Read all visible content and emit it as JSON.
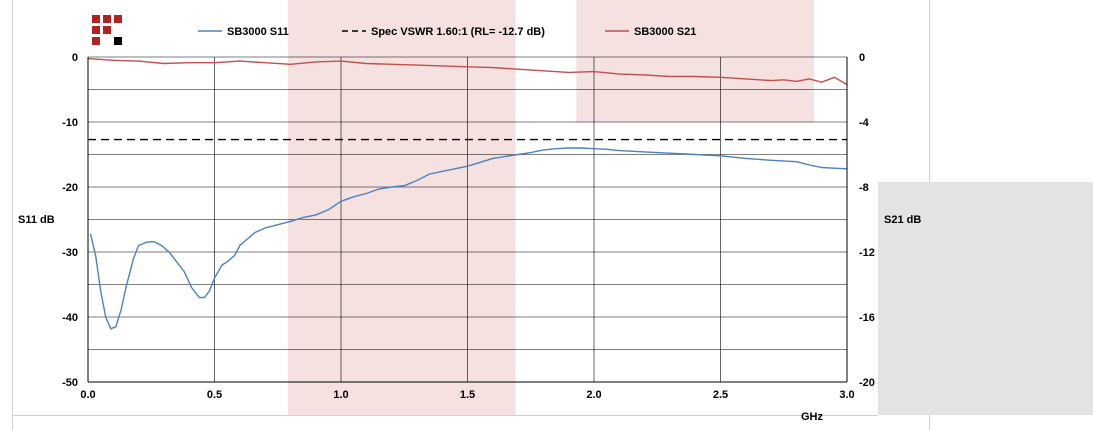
{
  "logo": {
    "name": "company-logo",
    "colors": {
      "primary": "#b22222",
      "accent": "#000000"
    }
  },
  "chart_data": {
    "type": "line",
    "xlabel": "GHz",
    "ylabel_left": "S11 dB",
    "ylabel_right": "S21 dB",
    "xlim": [
      0.0,
      3.0
    ],
    "ylim_left": [
      -50,
      0
    ],
    "ylim_right": [
      -20,
      0
    ],
    "x_ticks": [
      "0.0",
      "0.5",
      "1.0",
      "1.5",
      "2.0",
      "2.5",
      "3.0"
    ],
    "y_left_ticks": [
      "0",
      "-10",
      "-20",
      "-30",
      "-40",
      "-50"
    ],
    "y_right_ticks": [
      "0",
      "-4",
      "-8",
      "-12",
      "-16",
      "-20"
    ],
    "grid": true,
    "legend_position": "top",
    "shaded_bands": [
      {
        "x_range": [
          0.79,
          1.69
        ],
        "y_range_left": [
          -50,
          0
        ]
      },
      {
        "x_range": [
          1.93,
          2.87
        ],
        "y_range_left": [
          -10,
          0
        ]
      }
    ],
    "series": [
      {
        "name": "SB3000 S11",
        "axis": "left",
        "color": "#4f81bd",
        "style": "solid",
        "x": [
          0.01,
          0.03,
          0.05,
          0.07,
          0.09,
          0.11,
          0.13,
          0.15,
          0.18,
          0.2,
          0.23,
          0.26,
          0.29,
          0.32,
          0.35,
          0.38,
          0.41,
          0.44,
          0.46,
          0.48,
          0.5,
          0.53,
          0.55,
          0.58,
          0.6,
          0.63,
          0.66,
          0.7,
          0.75,
          0.8,
          0.85,
          0.9,
          0.95,
          1.0,
          1.05,
          1.1,
          1.15,
          1.2,
          1.25,
          1.3,
          1.35,
          1.4,
          1.45,
          1.5,
          1.55,
          1.6,
          1.65,
          1.7,
          1.75,
          1.8,
          1.85,
          1.9,
          1.95,
          2.0,
          2.05,
          2.1,
          2.2,
          2.3,
          2.4,
          2.5,
          2.6,
          2.7,
          2.8,
          2.85,
          2.9,
          2.95,
          3.0
        ],
        "y": [
          -27.2,
          -30.5,
          -36.0,
          -40.0,
          -41.8,
          -41.5,
          -39.0,
          -35.5,
          -31.0,
          -29.0,
          -28.5,
          -28.4,
          -29.0,
          -30.0,
          -31.5,
          -33.0,
          -35.5,
          -37.0,
          -37.0,
          -36.0,
          -34.0,
          -32.0,
          -31.5,
          -30.5,
          -29.0,
          -28.0,
          -27.0,
          -26.3,
          -25.8,
          -25.3,
          -24.7,
          -24.3,
          -23.5,
          -22.2,
          -21.5,
          -21.0,
          -20.3,
          -20.0,
          -19.8,
          -19.0,
          -18.0,
          -17.6,
          -17.2,
          -16.8,
          -16.2,
          -15.6,
          -15.3,
          -15.0,
          -14.7,
          -14.3,
          -14.1,
          -14.0,
          -14.0,
          -14.1,
          -14.2,
          -14.4,
          -14.6,
          -14.8,
          -15.0,
          -15.2,
          -15.6,
          -15.9,
          -16.1,
          -16.6,
          -17.0,
          -17.1,
          -17.2
        ]
      },
      {
        "name": "Spec VSWR 1.60:1 (RL= -12.7 dB)",
        "axis": "left",
        "color": "#000000",
        "style": "dashed",
        "x": [
          0.0,
          3.0
        ],
        "y": [
          -12.7,
          -12.7
        ]
      },
      {
        "name": "SB3000 S21",
        "axis": "right",
        "color": "#c0504d",
        "style": "solid",
        "x": [
          0.0,
          0.1,
          0.2,
          0.3,
          0.4,
          0.5,
          0.6,
          0.7,
          0.8,
          0.9,
          1.0,
          1.1,
          1.2,
          1.3,
          1.4,
          1.5,
          1.6,
          1.7,
          1.8,
          1.9,
          2.0,
          2.1,
          2.2,
          2.3,
          2.4,
          2.5,
          2.6,
          2.7,
          2.75,
          2.8,
          2.85,
          2.9,
          2.95,
          3.0
        ],
        "y": [
          -0.1,
          -0.2,
          -0.25,
          -0.4,
          -0.35,
          -0.35,
          -0.25,
          -0.35,
          -0.45,
          -0.3,
          -0.25,
          -0.4,
          -0.45,
          -0.5,
          -0.55,
          -0.6,
          -0.65,
          -0.75,
          -0.85,
          -0.95,
          -0.9,
          -1.05,
          -1.1,
          -1.2,
          -1.2,
          -1.25,
          -1.35,
          -1.45,
          -1.4,
          -1.5,
          -1.35,
          -1.55,
          -1.25,
          -1.7
        ]
      }
    ]
  }
}
